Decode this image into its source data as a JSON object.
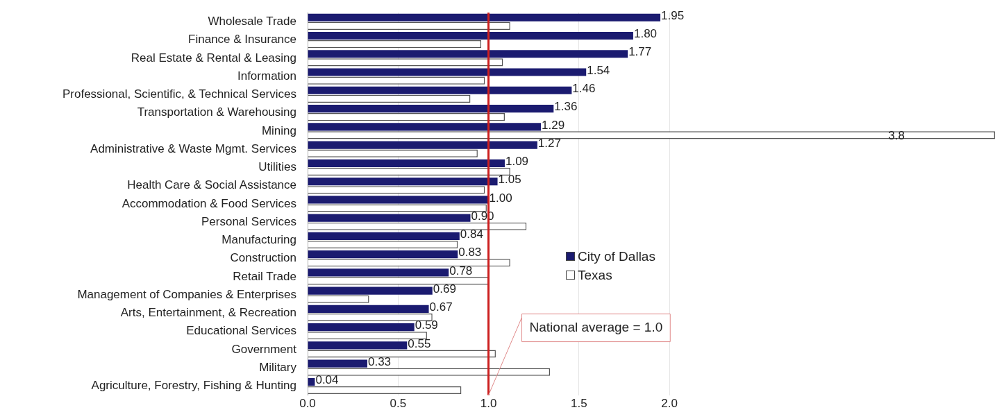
{
  "chart_data": {
    "type": "bar",
    "orientation": "horizontal",
    "categories": [
      "Wholesale Trade",
      "Finance & Insurance",
      "Real Estate & Rental & Leasing",
      "Information",
      "Professional, Scientific, & Technical Services",
      "Transportation & Warehousing",
      "Mining",
      "Administrative & Waste Mgmt. Services",
      "Utilities",
      "Health Care & Social Assistance",
      "Accommodation & Food Services",
      "Personal Services",
      "Manufacturing",
      "Construction",
      "Retail Trade",
      "Management of Companies & Enterprises",
      "Arts, Entertainment, & Recreation",
      "Educational Services",
      "Government",
      "Military",
      "Agriculture, Forestry, Fishing & Hunting"
    ],
    "series": [
      {
        "name": "City of Dallas",
        "color": "#1b1b70",
        "values": [
          1.95,
          1.8,
          1.77,
          1.54,
          1.46,
          1.36,
          1.29,
          1.27,
          1.09,
          1.05,
          1.0,
          0.9,
          0.84,
          0.83,
          0.78,
          0.69,
          0.67,
          0.59,
          0.55,
          0.33,
          0.04
        ],
        "value_labels": [
          "1.95",
          "1.80",
          "1.77",
          "1.54",
          "1.46",
          "1.36",
          "1.29",
          "1.27",
          "1.09",
          "1.05",
          "1.00",
          "0.90",
          "0.84",
          "0.83",
          "0.78",
          "0.69",
          "0.67",
          "0.59",
          "0.55",
          "0.33",
          "0.04"
        ]
      },
      {
        "name": "Texas",
        "color": "#ffffff",
        "values": [
          1.12,
          0.96,
          1.08,
          0.98,
          0.9,
          1.09,
          3.8,
          0.94,
          1.12,
          0.98,
          0.99,
          1.21,
          0.83,
          1.12,
          1.0,
          0.34,
          0.69,
          0.66,
          1.04,
          1.34,
          0.85
        ],
        "value_labels": [
          null,
          null,
          null,
          null,
          null,
          null,
          "3.8",
          null,
          null,
          null,
          null,
          null,
          null,
          null,
          null,
          null,
          null,
          null,
          null,
          null,
          null
        ]
      }
    ],
    "xlim": [
      0,
      3.8
    ],
    "xticks": [
      {
        "value": 0,
        "label": "0.0"
      },
      {
        "value": 0.5,
        "label": "0.5"
      },
      {
        "value": 1,
        "label": "1.0"
      },
      {
        "value": 1.5,
        "label": "1.5"
      },
      {
        "value": 2,
        "label": "2.0"
      }
    ],
    "grid": "x",
    "legend": "center",
    "ref_lines": [
      {
        "axis": "x",
        "value": 1.0,
        "label": "National average = 1.0",
        "color": "#cc1f1f"
      }
    ]
  }
}
